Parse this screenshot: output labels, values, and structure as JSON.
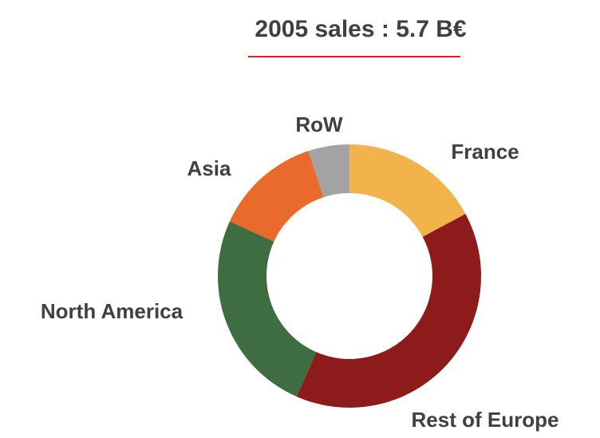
{
  "chart_data": {
    "type": "donut",
    "title": "2005 sales : 5.7 B€",
    "categories": [
      "France",
      "Rest of Europe",
      "North America",
      "Asia",
      "RoW"
    ],
    "values": [
      17,
      39,
      25,
      13,
      5
    ],
    "colors": [
      "#f2b24c",
      "#8e1b1b",
      "#3f6d42",
      "#e96a2a",
      "#a3a3a3"
    ]
  }
}
